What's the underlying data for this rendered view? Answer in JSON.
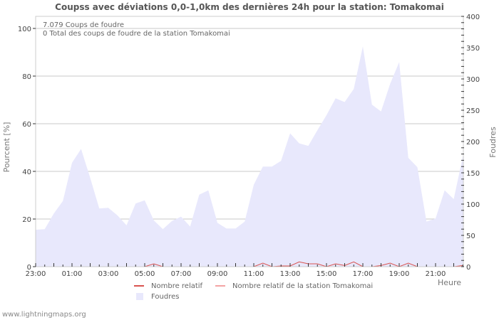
{
  "title": "Coupss avec déviations 0,0-1,0km des dernières 24h pour la station: Tomakomai",
  "info": {
    "line1": "7.079  Coups de foudre",
    "line2": "0 Total des coups de foudre de la station Tomakomai"
  },
  "legend": {
    "relative": "Nombre relatif",
    "relative_station": "Nombre relatif de la station Tomakomai",
    "strikes": "Foudres"
  },
  "footer": "www.lightningmaps.org",
  "colors": {
    "area": "#e8e8fc",
    "relative": "#d9534f",
    "relative_station": "#f4a3a3",
    "grid": "#c8c8c8",
    "axis": "#999999"
  },
  "chart_data": {
    "type": "area",
    "title": "Coupss avec déviations 0,0-1,0km des dernières 24h pour la station: Tomakomai",
    "xlabel": "Heure",
    "ylabel": "Pourcent   [%]",
    "ylabel_right": "Foudres",
    "ylim": [
      0,
      100
    ],
    "ylim_right": [
      0,
      400
    ],
    "yticks": [
      0,
      20,
      40,
      60,
      80,
      100
    ],
    "yticks_right": [
      0,
      50,
      100,
      150,
      200,
      250,
      300,
      350,
      400
    ],
    "xtick_labels": [
      "23:00",
      "01:00",
      "03:00",
      "05:00",
      "07:00",
      "09:00",
      "11:00",
      "13:00",
      "15:00",
      "17:00",
      "19:00",
      "21:00"
    ],
    "x": [
      "23:00",
      "23:30",
      "00:00",
      "00:30",
      "01:00",
      "01:30",
      "02:00",
      "02:30",
      "03:00",
      "03:30",
      "04:00",
      "04:30",
      "05:00",
      "05:30",
      "06:00",
      "06:30",
      "07:00",
      "07:30",
      "08:00",
      "08:30",
      "09:00",
      "09:30",
      "10:00",
      "10:30",
      "11:00",
      "11:30",
      "12:00",
      "12:30",
      "13:00",
      "13:30",
      "14:00",
      "14:30",
      "15:00",
      "15:30",
      "16:00",
      "16:30",
      "17:00",
      "17:30",
      "18:00",
      "18:30",
      "19:00",
      "19:30",
      "20:00",
      "20:30",
      "21:00",
      "21:30",
      "22:00",
      "22:30"
    ],
    "series": [
      {
        "name": "Foudres",
        "axis": "right",
        "values": [
          59,
          60,
          85,
          105,
          166,
          188,
          142,
          93,
          94,
          82,
          66,
          101,
          106,
          74,
          60,
          73,
          80,
          64,
          115,
          122,
          70,
          61,
          61,
          72,
          131,
          160,
          160,
          169,
          213,
          197,
          193,
          218,
          242,
          269,
          263,
          284,
          352,
          259,
          248,
          292,
          327,
          174,
          159,
          72,
          77,
          122,
          108,
          176
        ]
      },
      {
        "name": "Nombre relatif",
        "axis": "left",
        "values": [
          0,
          0,
          0,
          0,
          0,
          0,
          0,
          0,
          0,
          0,
          0,
          0,
          0,
          1.2,
          0,
          0,
          0,
          0,
          0,
          0,
          0,
          0,
          0,
          0,
          0,
          1.5,
          0,
          0.3,
          0.3,
          2.0,
          1.2,
          1.2,
          0,
          1.2,
          0.5,
          2.0,
          0,
          0,
          0.5,
          1.5,
          0,
          1.5,
          0,
          0,
          0,
          0,
          0,
          0.5
        ]
      },
      {
        "name": "Nombre relatif de la station Tomakomai",
        "axis": "left",
        "values": [
          0,
          0,
          0,
          0,
          0,
          0,
          0,
          0,
          0,
          0,
          0,
          0,
          0,
          0,
          0,
          0,
          0,
          0,
          0,
          0,
          0,
          0,
          0,
          0,
          0,
          0,
          0,
          0,
          0,
          0,
          0,
          0,
          0,
          0,
          0,
          0,
          0,
          0,
          0,
          0,
          0,
          0,
          0,
          0,
          0,
          0,
          0,
          0
        ]
      }
    ],
    "legend_position": "bottom",
    "grid": true
  }
}
